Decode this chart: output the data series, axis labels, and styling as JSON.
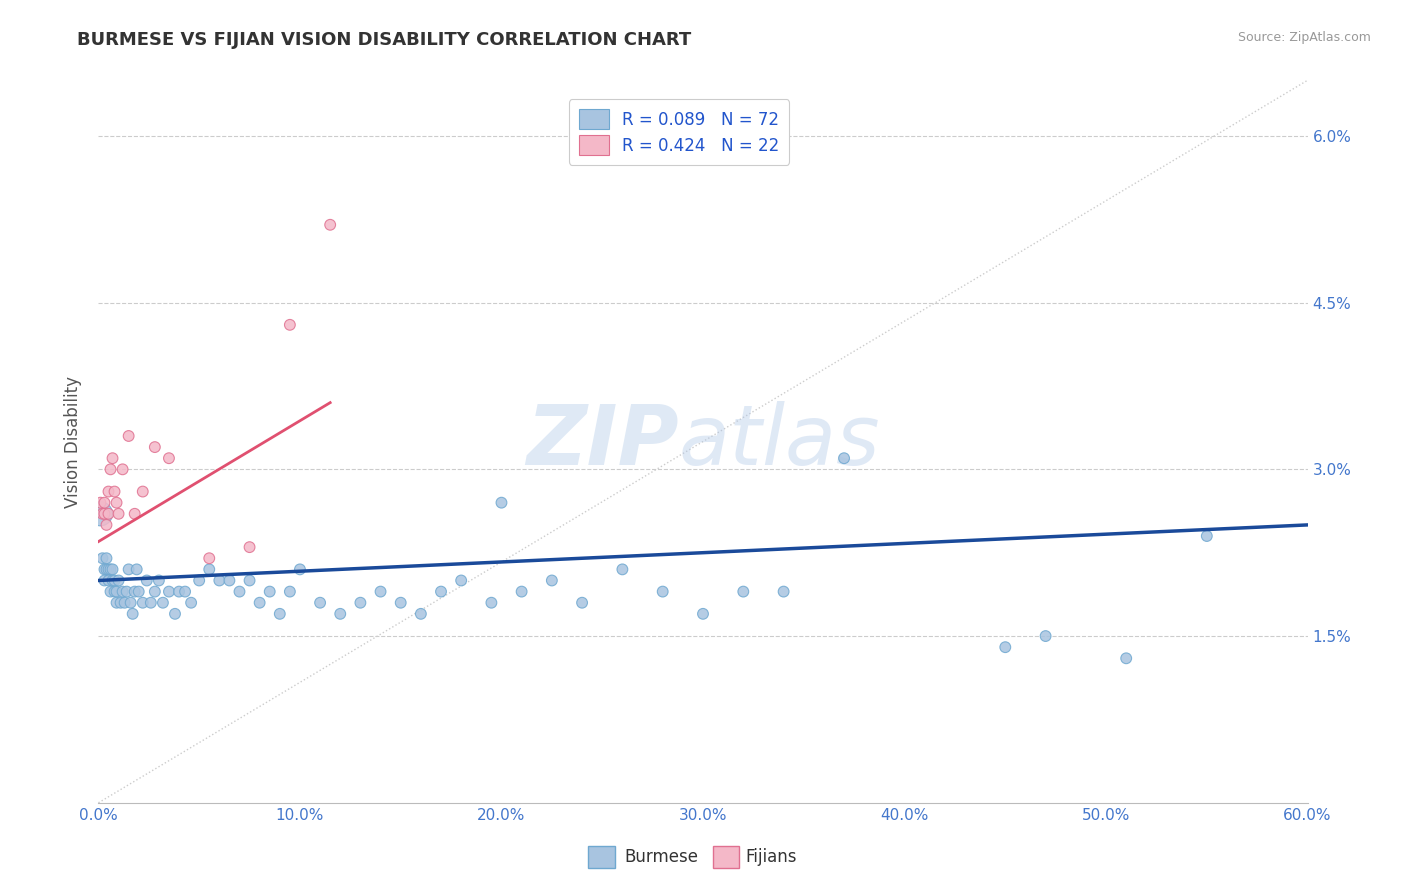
{
  "title": "BURMESE VS FIJIAN VISION DISABILITY CORRELATION CHART",
  "source": "Source: ZipAtlas.com",
  "xlabel_burmese": "Burmese",
  "xlabel_fijians": "Fijians",
  "ylabel": "Vision Disability",
  "xlim": [
    0.0,
    0.6
  ],
  "ylim": [
    0.0,
    0.065
  ],
  "xticks": [
    0.0,
    0.1,
    0.2,
    0.3,
    0.4,
    0.5,
    0.6
  ],
  "xticklabels": [
    "0.0%",
    "10.0%",
    "20.0%",
    "30.0%",
    "40.0%",
    "50.0%",
    "60.0%"
  ],
  "ytick_vals": [
    0.015,
    0.03,
    0.045,
    0.06
  ],
  "ytick_labels": [
    "1.5%",
    "3.0%",
    "4.5%",
    "6.0%"
  ],
  "grid_color": "#cccccc",
  "bg_color": "#ffffff",
  "burmese_color": "#a8c4e0",
  "burmese_edge_color": "#6fa8d0",
  "fijian_color": "#f4b8c8",
  "fijian_edge_color": "#e07090",
  "blue_line_color": "#1a4a9a",
  "pink_line_color": "#e05070",
  "ref_line_color": "#cccccc",
  "legend_r_blue": "R = 0.089",
  "legend_n_blue": "N = 72",
  "legend_r_pink": "R = 0.424",
  "legend_n_pink": "N = 22",
  "watermark_zip": "ZIP",
  "watermark_atlas": "atlas",
  "burmese_x": [
    0.001,
    0.002,
    0.003,
    0.003,
    0.004,
    0.004,
    0.005,
    0.005,
    0.006,
    0.006,
    0.007,
    0.007,
    0.008,
    0.008,
    0.009,
    0.009,
    0.01,
    0.011,
    0.012,
    0.013,
    0.014,
    0.015,
    0.016,
    0.017,
    0.018,
    0.019,
    0.02,
    0.022,
    0.024,
    0.026,
    0.028,
    0.03,
    0.032,
    0.035,
    0.038,
    0.04,
    0.043,
    0.046,
    0.05,
    0.055,
    0.06,
    0.065,
    0.07,
    0.075,
    0.08,
    0.085,
    0.09,
    0.095,
    0.1,
    0.11,
    0.12,
    0.13,
    0.14,
    0.15,
    0.16,
    0.17,
    0.18,
    0.195,
    0.21,
    0.225,
    0.24,
    0.26,
    0.28,
    0.3,
    0.32,
    0.34,
    0.37,
    0.2,
    0.45,
    0.47,
    0.51,
    0.55
  ],
  "burmese_y": [
    0.026,
    0.022,
    0.021,
    0.02,
    0.021,
    0.022,
    0.02,
    0.021,
    0.019,
    0.021,
    0.02,
    0.021,
    0.019,
    0.02,
    0.019,
    0.018,
    0.02,
    0.018,
    0.019,
    0.018,
    0.019,
    0.021,
    0.018,
    0.017,
    0.019,
    0.021,
    0.019,
    0.018,
    0.02,
    0.018,
    0.019,
    0.02,
    0.018,
    0.019,
    0.017,
    0.019,
    0.019,
    0.018,
    0.02,
    0.021,
    0.02,
    0.02,
    0.019,
    0.02,
    0.018,
    0.019,
    0.017,
    0.019,
    0.021,
    0.018,
    0.017,
    0.018,
    0.019,
    0.018,
    0.017,
    0.019,
    0.02,
    0.018,
    0.019,
    0.02,
    0.018,
    0.021,
    0.019,
    0.017,
    0.019,
    0.019,
    0.031,
    0.027,
    0.014,
    0.015,
    0.013,
    0.024
  ],
  "burmese_sizes": [
    300,
    60,
    60,
    60,
    60,
    60,
    60,
    60,
    60,
    60,
    60,
    60,
    60,
    60,
    60,
    60,
    60,
    60,
    60,
    60,
    60,
    60,
    60,
    60,
    60,
    60,
    60,
    60,
    60,
    60,
    60,
    60,
    60,
    60,
    60,
    60,
    60,
    60,
    60,
    60,
    60,
    60,
    60,
    60,
    60,
    60,
    60,
    60,
    60,
    60,
    60,
    60,
    60,
    60,
    60,
    60,
    60,
    60,
    60,
    60,
    60,
    60,
    60,
    60,
    60,
    60,
    60,
    60,
    60,
    60,
    60,
    60
  ],
  "fijian_x": [
    0.001,
    0.002,
    0.003,
    0.003,
    0.004,
    0.005,
    0.005,
    0.006,
    0.007,
    0.008,
    0.009,
    0.01,
    0.012,
    0.015,
    0.018,
    0.022,
    0.028,
    0.035,
    0.055,
    0.075,
    0.095,
    0.115
  ],
  "fijian_y": [
    0.027,
    0.026,
    0.026,
    0.027,
    0.025,
    0.026,
    0.028,
    0.03,
    0.031,
    0.028,
    0.027,
    0.026,
    0.03,
    0.033,
    0.026,
    0.028,
    0.032,
    0.031,
    0.022,
    0.023,
    0.043,
    0.052
  ],
  "fijian_sizes": [
    60,
    60,
    60,
    60,
    60,
    60,
    60,
    60,
    60,
    60,
    60,
    60,
    60,
    60,
    60,
    60,
    60,
    60,
    60,
    60,
    60,
    60
  ],
  "blue_line_x": [
    0.0,
    0.6
  ],
  "blue_line_y": [
    0.02,
    0.025
  ],
  "pink_line_x": [
    0.0,
    0.115
  ],
  "pink_line_y": [
    0.0235,
    0.036
  ],
  "ref_line_x": [
    0.0,
    0.6
  ],
  "ref_line_y": [
    0.0,
    0.065
  ]
}
